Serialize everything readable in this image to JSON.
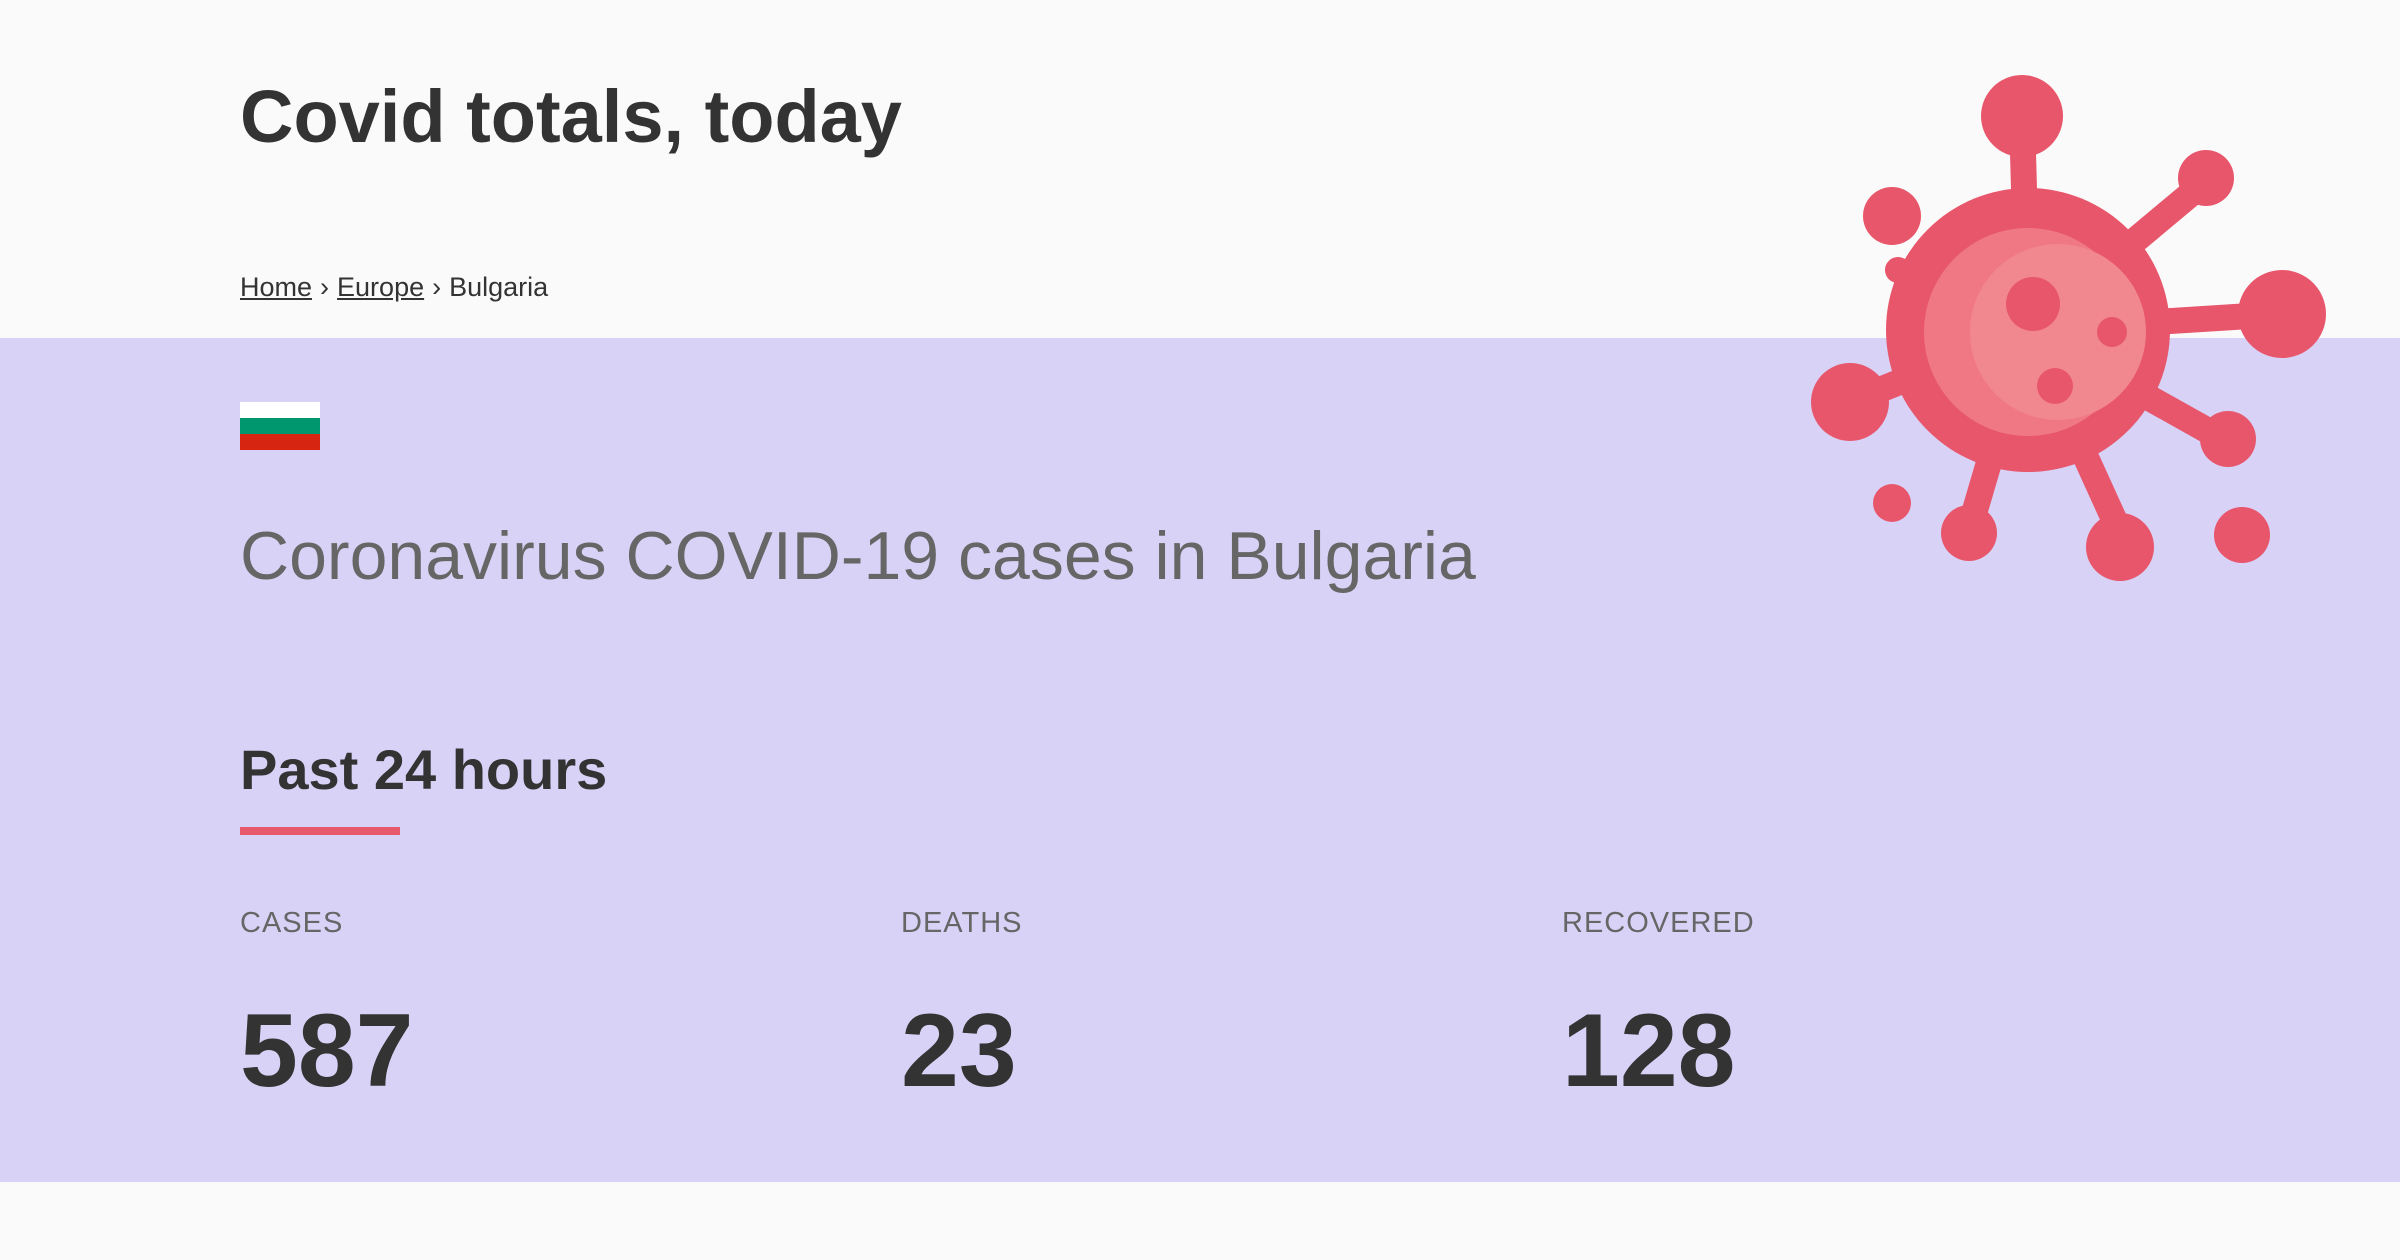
{
  "header": {
    "title": "Covid totals, today"
  },
  "breadcrumb": {
    "items": [
      {
        "label": "Home"
      },
      {
        "label": "Europe"
      }
    ],
    "separator": "›",
    "current": "Bulgaria"
  },
  "country": {
    "flag_colors": [
      "#ffffff",
      "#00966e",
      "#d62612"
    ],
    "heading": "Coronavirus COVID-19 cases in Bulgaria"
  },
  "section": {
    "title": "Past 24 hours",
    "accent_color": "#e85a6b"
  },
  "stats": [
    {
      "label": "CASES",
      "value": "587"
    },
    {
      "label": "DEATHS",
      "value": "23"
    },
    {
      "label": "RECOVERED",
      "value": "128"
    }
  ],
  "colors": {
    "band_background": "#d9d2f7",
    "page_background": "#fafafa",
    "virus_primary": "#e8566b",
    "virus_highlight": "#f2888f"
  },
  "icons": {
    "illustration": "virus-icon"
  }
}
